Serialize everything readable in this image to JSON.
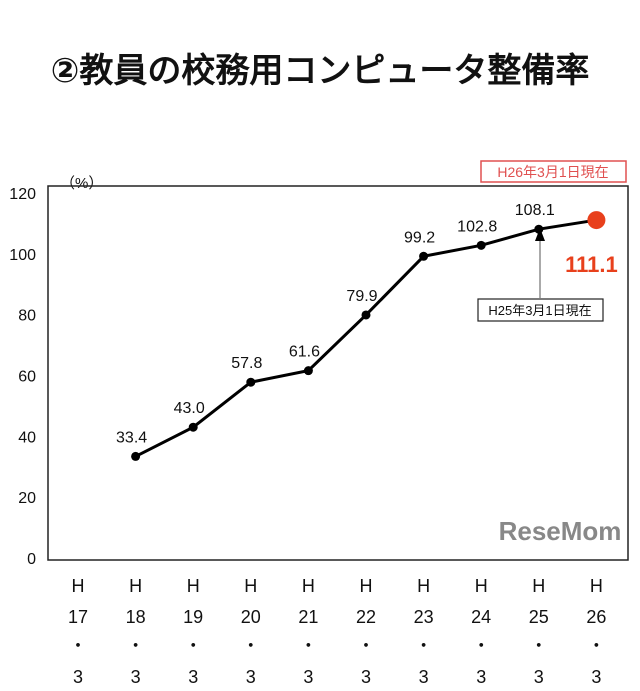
{
  "chart_data": {
    "type": "line",
    "title": "②教員の校務用コンピュータ整備率",
    "ylabel": "（%）",
    "ylim": [
      0,
      120
    ],
    "yticks": [
      0,
      20,
      40,
      60,
      80,
      100,
      120
    ],
    "grid": false,
    "categories": [
      {
        "era": "H",
        "year": "17",
        "sep": "・",
        "month": "3"
      },
      {
        "era": "H",
        "year": "18",
        "sep": "・",
        "month": "3"
      },
      {
        "era": "H",
        "year": "19",
        "sep": "・",
        "month": "3"
      },
      {
        "era": "H",
        "year": "20",
        "sep": "・",
        "month": "3"
      },
      {
        "era": "H",
        "year": "21",
        "sep": "・",
        "month": "3"
      },
      {
        "era": "H",
        "year": "22",
        "sep": "・",
        "month": "3"
      },
      {
        "era": "H",
        "year": "23",
        "sep": "・",
        "month": "3"
      },
      {
        "era": "H",
        "year": "24",
        "sep": "・",
        "month": "3"
      },
      {
        "era": "H",
        "year": "25",
        "sep": "・",
        "month": "3"
      },
      {
        "era": "H",
        "year": "26",
        "sep": "・",
        "month": "3"
      }
    ],
    "values": [
      null,
      33.4,
      43.0,
      57.8,
      61.6,
      79.9,
      99.2,
      102.8,
      108.1,
      111.1
    ],
    "labels": [
      "",
      "33.4",
      "43.0",
      "57.8",
      "61.6",
      "79.9",
      "99.2",
      "102.8",
      "108.1",
      "111.1"
    ],
    "annotations": {
      "latest": "H26年3月1日現在",
      "previous": "H25年3月1日現在"
    },
    "colors": {
      "line": "#000000",
      "highlight": "#e8401c",
      "latest_box": "#e05050"
    }
  },
  "watermark": "ReseMom"
}
